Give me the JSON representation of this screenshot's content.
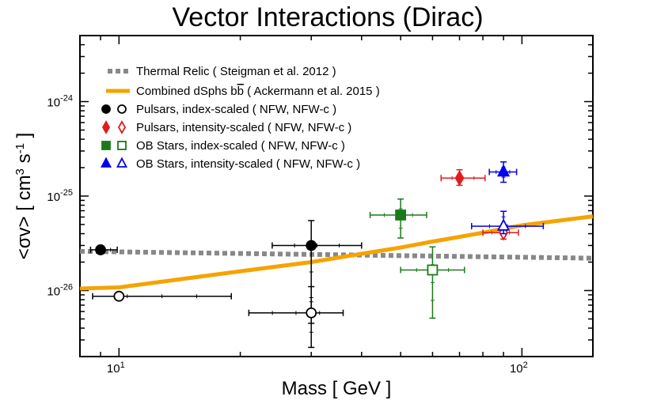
{
  "chart_data": {
    "type": "scatter",
    "title": "Vector Interactions (Dirac)",
    "xlabel": "Mass [ GeV ]",
    "ylabel": "<σv> [ cm³ s⁻¹ ]",
    "ylabel_parts": {
      "base": "<σv> [ cm",
      "exp1": "3",
      "mid": " s",
      "exp2": "-1",
      "end": " ]"
    },
    "xscale": "log",
    "yscale": "log",
    "xlim": [
      8,
      150
    ],
    "ylim": [
      2e-27,
      5e-24
    ],
    "x_ticks": [
      {
        "value": 10,
        "base": "10",
        "exp": "1"
      },
      {
        "value": 100,
        "base": "10",
        "exp": "2"
      }
    ],
    "y_ticks": [
      {
        "value": 1e-26,
        "base": "10",
        "exp": "-26"
      },
      {
        "value": 1e-25,
        "base": "10",
        "exp": "-25"
      },
      {
        "value": 1e-24,
        "base": "10",
        "exp": "-24"
      }
    ],
    "legend_position": "top-left",
    "series": [
      {
        "name": "thermal-relic",
        "kind": "line",
        "style": "dotted",
        "color": "#888888",
        "x": [
          8,
          150
        ],
        "y": [
          2.6e-26,
          2.2e-26
        ]
      },
      {
        "name": "combined-dsphs",
        "kind": "line",
        "style": "solid",
        "color": "#f5a300",
        "x": [
          8,
          10,
          20,
          30,
          40,
          50,
          60,
          70,
          80,
          90,
          100,
          150
        ],
        "y": [
          1.05e-26,
          1.08e-26,
          1.6e-26,
          2e-26,
          2.45e-26,
          2.85e-26,
          3.3e-26,
          3.7e-26,
          4.1e-26,
          4.5e-26,
          4.9e-26,
          6.1e-26
        ]
      },
      {
        "name": "pulsars-index-nfw",
        "marker": "circle",
        "filled": true,
        "color": "#000000",
        "points": [
          {
            "x": 9.0,
            "y": 2.7e-26,
            "xerr": [
              8.5,
              9.9
            ],
            "yerr": [
              2.6e-26,
              2.8e-26
            ]
          },
          {
            "x": 30.0,
            "y": 3e-26,
            "xerr": [
              24.0,
              40.0
            ],
            "yerr": [
              4.5e-27,
              5.5e-26
            ]
          }
        ]
      },
      {
        "name": "pulsars-index-nfwc",
        "marker": "circle",
        "filled": false,
        "color": "#000000",
        "points": [
          {
            "x": 10.0,
            "y": 8.7e-27,
            "xerr": [
              8.6,
              19.0
            ],
            "yerr": [
              8e-27,
              9.4e-27
            ]
          },
          {
            "x": 30.0,
            "y": 5.8e-27,
            "xerr": [
              21.0,
              36.0
            ],
            "yerr": [
              2.5e-27,
              1.1e-26
            ]
          }
        ]
      },
      {
        "name": "pulsars-intensity-nfw",
        "marker": "diamond",
        "filled": true,
        "color": "#e41a1c",
        "points": [
          {
            "x": 70.0,
            "y": 1.55e-25,
            "xerr": [
              63.0,
              81.0
            ],
            "yerr": [
              1.3e-25,
              1.9e-25
            ]
          }
        ]
      },
      {
        "name": "pulsars-intensity-nfwc",
        "marker": "diamond",
        "filled": false,
        "color": "#e41a1c",
        "points": [
          {
            "x": 90.0,
            "y": 4.1e-26,
            "xerr": [
              80.0,
              98.0
            ],
            "yerr": [
              3.5e-26,
              4.7e-26
            ]
          }
        ]
      },
      {
        "name": "ob-index-nfw",
        "marker": "square",
        "filled": true,
        "color": "#1a7a1a",
        "points": [
          {
            "x": 50.0,
            "y": 6.3e-26,
            "xerr": [
              42.0,
              58.0
            ],
            "yerr": [
              3.6e-26,
              9.3e-26
            ]
          }
        ]
      },
      {
        "name": "ob-index-nfwc",
        "marker": "square",
        "filled": false,
        "color": "#1a7a1a",
        "points": [
          {
            "x": 60.0,
            "y": 1.65e-26,
            "xerr": [
              50.0,
              72.0
            ],
            "yerr": [
              5.1e-27,
              2.9e-26
            ]
          }
        ]
      },
      {
        "name": "ob-intensity-nfw",
        "marker": "triangle",
        "filled": true,
        "color": "#0000ee",
        "points": [
          {
            "x": 90.0,
            "y": 1.8e-25,
            "xerr": [
              83.0,
              97.0
            ],
            "yerr": [
              1.4e-25,
              2.3e-25
            ]
          }
        ]
      },
      {
        "name": "ob-intensity-nfwc",
        "marker": "triangle",
        "filled": false,
        "color": "#0000ee",
        "points": [
          {
            "x": 90.0,
            "y": 4.8e-26,
            "xerr": [
              75.0,
              113.0
            ],
            "yerr": [
              4e-26,
              6.9e-26
            ]
          }
        ]
      }
    ],
    "legend": [
      {
        "kind": "dotted-line",
        "color": "#888888",
        "label": "Thermal Relic ( Steigman et al. 2012 )"
      },
      {
        "kind": "solid-line",
        "color": "#f5a300",
        "label_pre": "Combined dSphs b",
        "label_bbar": "b",
        "label_post": " ( Ackermann et al. 2015 )"
      },
      {
        "kind": "circle",
        "color": "#000000",
        "label": "Pulsars, index-scaled ( NFW, NFW-c )"
      },
      {
        "kind": "diamond",
        "color": "#e41a1c",
        "label": "Pulsars, intensity-scaled ( NFW, NFW-c )"
      },
      {
        "kind": "square",
        "color": "#1a7a1a",
        "label": "OB Stars, index-scaled ( NFW, NFW-c )"
      },
      {
        "kind": "triangle",
        "color": "#0000ee",
        "label": "OB Stars, intensity-scaled ( NFW, NFW-c )"
      }
    ]
  }
}
